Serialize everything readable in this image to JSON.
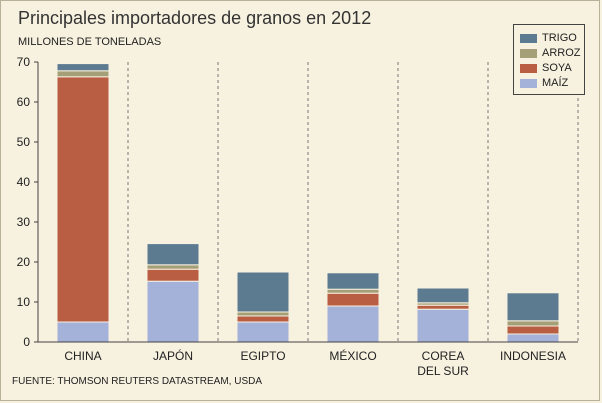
{
  "chart_data": {
    "type": "bar",
    "stacked": true,
    "title": "Principales importadores de granos en 2012",
    "subtitle": "MILLONES DE TONELADAS",
    "source": "FUENTE: THOMSON REUTERS DATASTREAM, USDA",
    "categories": [
      "CHINA",
      "JAPÓN",
      "EGIPTO",
      "MÉXICO",
      "COREA\nDEL SUR",
      "INDONESIA"
    ],
    "ylim": [
      0,
      70
    ],
    "yticks": [
      0,
      10,
      20,
      30,
      40,
      50,
      60,
      70
    ],
    "grid": "dashed vertical separators between categories",
    "legend_position": "top-right",
    "series": [
      {
        "name": "MAÍZ",
        "color": "#a4b1d9",
        "values": [
          5,
          15.2,
          5,
          9,
          8.2,
          2
        ]
      },
      {
        "name": "SOYA",
        "color": "#b95d43",
        "values": [
          61.3,
          3,
          1.5,
          3.2,
          1,
          2
        ]
      },
      {
        "name": "ARROZ",
        "color": "#a59f78",
        "values": [
          1.5,
          1.1,
          1,
          1,
          0.6,
          1.3
        ]
      },
      {
        "name": "TRIGO",
        "color": "#5c7b91",
        "values": [
          1.8,
          5.3,
          10,
          4.1,
          3.7,
          7
        ]
      }
    ],
    "legend_order": [
      "TRIGO",
      "ARROZ",
      "SOYA",
      "MAÍZ"
    ]
  }
}
